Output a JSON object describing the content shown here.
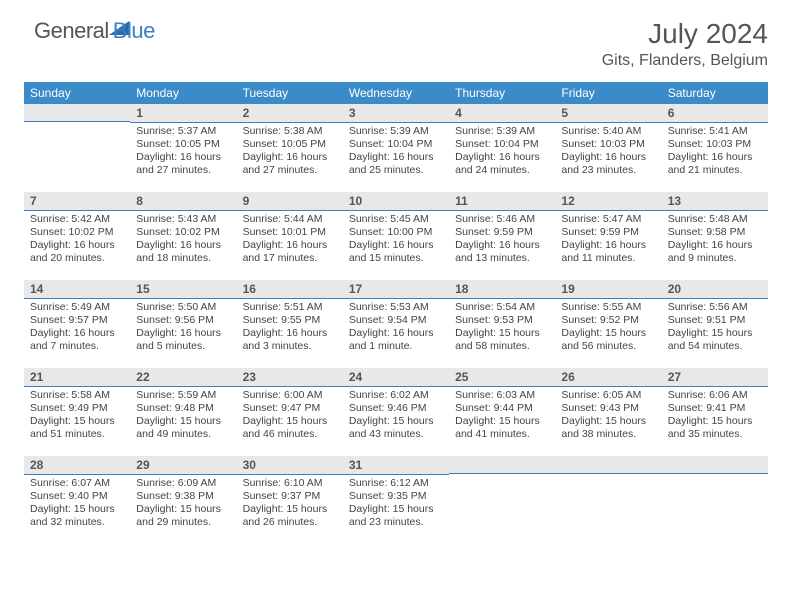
{
  "logo": {
    "general": "General",
    "blue": "Blue"
  },
  "title": "July 2024",
  "location": "Gits, Flanders, Belgium",
  "weekdays": [
    "Sunday",
    "Monday",
    "Tuesday",
    "Wednesday",
    "Thursday",
    "Friday",
    "Saturday"
  ],
  "header_bg": "#3b8bc9",
  "header_text": "#ffffff",
  "daynum_bg": "#e8e8e8",
  "daynum_border": "#3b7fc4",
  "body_text_color": "#444444",
  "weeks": [
    [
      {
        "n": "",
        "sunrise": "",
        "sunset": "",
        "daylight": ""
      },
      {
        "n": "1",
        "sunrise": "Sunrise: 5:37 AM",
        "sunset": "Sunset: 10:05 PM",
        "daylight": "Daylight: 16 hours and 27 minutes."
      },
      {
        "n": "2",
        "sunrise": "Sunrise: 5:38 AM",
        "sunset": "Sunset: 10:05 PM",
        "daylight": "Daylight: 16 hours and 27 minutes."
      },
      {
        "n": "3",
        "sunrise": "Sunrise: 5:39 AM",
        "sunset": "Sunset: 10:04 PM",
        "daylight": "Daylight: 16 hours and 25 minutes."
      },
      {
        "n": "4",
        "sunrise": "Sunrise: 5:39 AM",
        "sunset": "Sunset: 10:04 PM",
        "daylight": "Daylight: 16 hours and 24 minutes."
      },
      {
        "n": "5",
        "sunrise": "Sunrise: 5:40 AM",
        "sunset": "Sunset: 10:03 PM",
        "daylight": "Daylight: 16 hours and 23 minutes."
      },
      {
        "n": "6",
        "sunrise": "Sunrise: 5:41 AM",
        "sunset": "Sunset: 10:03 PM",
        "daylight": "Daylight: 16 hours and 21 minutes."
      }
    ],
    [
      {
        "n": "7",
        "sunrise": "Sunrise: 5:42 AM",
        "sunset": "Sunset: 10:02 PM",
        "daylight": "Daylight: 16 hours and 20 minutes."
      },
      {
        "n": "8",
        "sunrise": "Sunrise: 5:43 AM",
        "sunset": "Sunset: 10:02 PM",
        "daylight": "Daylight: 16 hours and 18 minutes."
      },
      {
        "n": "9",
        "sunrise": "Sunrise: 5:44 AM",
        "sunset": "Sunset: 10:01 PM",
        "daylight": "Daylight: 16 hours and 17 minutes."
      },
      {
        "n": "10",
        "sunrise": "Sunrise: 5:45 AM",
        "sunset": "Sunset: 10:00 PM",
        "daylight": "Daylight: 16 hours and 15 minutes."
      },
      {
        "n": "11",
        "sunrise": "Sunrise: 5:46 AM",
        "sunset": "Sunset: 9:59 PM",
        "daylight": "Daylight: 16 hours and 13 minutes."
      },
      {
        "n": "12",
        "sunrise": "Sunrise: 5:47 AM",
        "sunset": "Sunset: 9:59 PM",
        "daylight": "Daylight: 16 hours and 11 minutes."
      },
      {
        "n": "13",
        "sunrise": "Sunrise: 5:48 AM",
        "sunset": "Sunset: 9:58 PM",
        "daylight": "Daylight: 16 hours and 9 minutes."
      }
    ],
    [
      {
        "n": "14",
        "sunrise": "Sunrise: 5:49 AM",
        "sunset": "Sunset: 9:57 PM",
        "daylight": "Daylight: 16 hours and 7 minutes."
      },
      {
        "n": "15",
        "sunrise": "Sunrise: 5:50 AM",
        "sunset": "Sunset: 9:56 PM",
        "daylight": "Daylight: 16 hours and 5 minutes."
      },
      {
        "n": "16",
        "sunrise": "Sunrise: 5:51 AM",
        "sunset": "Sunset: 9:55 PM",
        "daylight": "Daylight: 16 hours and 3 minutes."
      },
      {
        "n": "17",
        "sunrise": "Sunrise: 5:53 AM",
        "sunset": "Sunset: 9:54 PM",
        "daylight": "Daylight: 16 hours and 1 minute."
      },
      {
        "n": "18",
        "sunrise": "Sunrise: 5:54 AM",
        "sunset": "Sunset: 9:53 PM",
        "daylight": "Daylight: 15 hours and 58 minutes."
      },
      {
        "n": "19",
        "sunrise": "Sunrise: 5:55 AM",
        "sunset": "Sunset: 9:52 PM",
        "daylight": "Daylight: 15 hours and 56 minutes."
      },
      {
        "n": "20",
        "sunrise": "Sunrise: 5:56 AM",
        "sunset": "Sunset: 9:51 PM",
        "daylight": "Daylight: 15 hours and 54 minutes."
      }
    ],
    [
      {
        "n": "21",
        "sunrise": "Sunrise: 5:58 AM",
        "sunset": "Sunset: 9:49 PM",
        "daylight": "Daylight: 15 hours and 51 minutes."
      },
      {
        "n": "22",
        "sunrise": "Sunrise: 5:59 AM",
        "sunset": "Sunset: 9:48 PM",
        "daylight": "Daylight: 15 hours and 49 minutes."
      },
      {
        "n": "23",
        "sunrise": "Sunrise: 6:00 AM",
        "sunset": "Sunset: 9:47 PM",
        "daylight": "Daylight: 15 hours and 46 minutes."
      },
      {
        "n": "24",
        "sunrise": "Sunrise: 6:02 AM",
        "sunset": "Sunset: 9:46 PM",
        "daylight": "Daylight: 15 hours and 43 minutes."
      },
      {
        "n": "25",
        "sunrise": "Sunrise: 6:03 AM",
        "sunset": "Sunset: 9:44 PM",
        "daylight": "Daylight: 15 hours and 41 minutes."
      },
      {
        "n": "26",
        "sunrise": "Sunrise: 6:05 AM",
        "sunset": "Sunset: 9:43 PM",
        "daylight": "Daylight: 15 hours and 38 minutes."
      },
      {
        "n": "27",
        "sunrise": "Sunrise: 6:06 AM",
        "sunset": "Sunset: 9:41 PM",
        "daylight": "Daylight: 15 hours and 35 minutes."
      }
    ],
    [
      {
        "n": "28",
        "sunrise": "Sunrise: 6:07 AM",
        "sunset": "Sunset: 9:40 PM",
        "daylight": "Daylight: 15 hours and 32 minutes."
      },
      {
        "n": "29",
        "sunrise": "Sunrise: 6:09 AM",
        "sunset": "Sunset: 9:38 PM",
        "daylight": "Daylight: 15 hours and 29 minutes."
      },
      {
        "n": "30",
        "sunrise": "Sunrise: 6:10 AM",
        "sunset": "Sunset: 9:37 PM",
        "daylight": "Daylight: 15 hours and 26 minutes."
      },
      {
        "n": "31",
        "sunrise": "Sunrise: 6:12 AM",
        "sunset": "Sunset: 9:35 PM",
        "daylight": "Daylight: 15 hours and 23 minutes."
      },
      {
        "n": "",
        "sunrise": "",
        "sunset": "",
        "daylight": ""
      },
      {
        "n": "",
        "sunrise": "",
        "sunset": "",
        "daylight": ""
      },
      {
        "n": "",
        "sunrise": "",
        "sunset": "",
        "daylight": ""
      }
    ]
  ]
}
